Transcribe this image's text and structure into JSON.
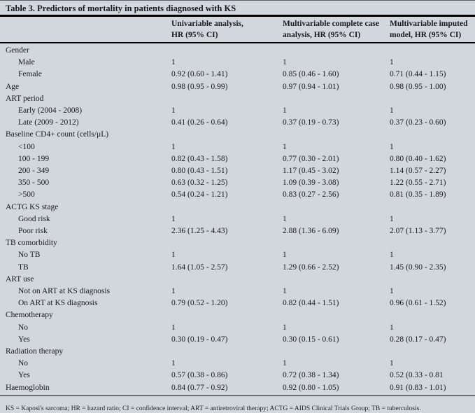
{
  "title": "Table 3. Predictors of mortality in patients diagnosed with KS",
  "columns": [
    {
      "line1": "Univariable analysis,",
      "line2": "HR (95% CI)"
    },
    {
      "line1": "Multivariable complete case",
      "line2": "analysis, HR (95% CI)"
    },
    {
      "line1": "Multivariable imputed",
      "line2": "model, HR (95% CI)"
    }
  ],
  "rows": [
    {
      "label": "Gender",
      "indent": 0,
      "values": [
        "",
        "",
        ""
      ]
    },
    {
      "label": "Male",
      "indent": 1,
      "values": [
        "1",
        "1",
        "1"
      ]
    },
    {
      "label": "Female",
      "indent": 1,
      "values": [
        "0.92 (0.60 - 1.41)",
        "0.85 (0.46 - 1.60)",
        "0.71 (0.44 - 1.15)"
      ]
    },
    {
      "label": "Age",
      "indent": 0,
      "values": [
        "0.98 (0.95 - 0.99)",
        "0.97 (0.94 - 1.01)",
        "0.98 (0.95 - 1.00)"
      ]
    },
    {
      "label": "ART period",
      "indent": 0,
      "values": [
        "",
        "",
        ""
      ]
    },
    {
      "label": "Early (2004 - 2008)",
      "indent": 1,
      "values": [
        "1",
        "1",
        "1"
      ]
    },
    {
      "label": "Late (2009 - 2012)",
      "indent": 1,
      "values": [
        "0.41 (0.26 - 0.64)",
        "0.37 (0.19 - 0.73)",
        "0.37 (0.23 - 0.60)"
      ]
    },
    {
      "label": "Baseline CD4+ count (cells/μL)",
      "indent": 0,
      "values": [
        "",
        "",
        ""
      ]
    },
    {
      "label": "<100",
      "indent": 1,
      "values": [
        "1",
        "1",
        "1"
      ]
    },
    {
      "label": "100 - 199",
      "indent": 1,
      "values": [
        "0.82 (0.43 - 1.58)",
        "0.77 (0.30 - 2.01)",
        "0.80 (0.40 - 1.62)"
      ]
    },
    {
      "label": "200 - 349",
      "indent": 1,
      "values": [
        "0.80 (0.43 - 1.51)",
        "1.17 (0.45 - 3.02)",
        "1.14 (0.57 - 2.27)"
      ]
    },
    {
      "label": "350 - 500",
      "indent": 1,
      "values": [
        "0.63 (0.32 - 1.25)",
        "1.09 (0.39 - 3.08)",
        "1.22 (0.55 - 2.71)"
      ]
    },
    {
      "label": ">500",
      "indent": 1,
      "values": [
        "0.54 (0.24 - 1.21)",
        "0.83 (0.27 - 2.56)",
        "0.81 (0.35 - 1.89)"
      ]
    },
    {
      "label": "ACTG KS stage",
      "indent": 0,
      "values": [
        "",
        "",
        ""
      ]
    },
    {
      "label": "Good risk",
      "indent": 1,
      "values": [
        "1",
        "1",
        "1"
      ]
    },
    {
      "label": "Poor risk",
      "indent": 1,
      "values": [
        "2.36 (1.25 - 4.43)",
        "2.88 (1.36 - 6.09)",
        "2.07 (1.13 - 3.77)"
      ]
    },
    {
      "label": "TB comorbidity",
      "indent": 0,
      "values": [
        "",
        "",
        ""
      ]
    },
    {
      "label": "No TB",
      "indent": 1,
      "values": [
        "1",
        "1",
        "1"
      ]
    },
    {
      "label": "TB",
      "indent": 1,
      "values": [
        "1.64 (1.05 - 2.57)",
        "1.29 (0.66 - 2.52)",
        "1.45 (0.90 - 2.35)"
      ]
    },
    {
      "label": "ART use",
      "indent": 0,
      "values": [
        "",
        "",
        ""
      ]
    },
    {
      "label": "Not on ART at KS diagnosis",
      "indent": 1,
      "values": [
        "1",
        "1",
        "1"
      ]
    },
    {
      "label": "On ART at KS diagnosis",
      "indent": 1,
      "values": [
        "0.79 (0.52 - 1.20)",
        "0.82 (0.44 - 1.51)",
        "0.96 (0.61 - 1.52)"
      ]
    },
    {
      "label": "Chemotherapy",
      "indent": 0,
      "values": [
        "",
        "",
        ""
      ]
    },
    {
      "label": "No",
      "indent": 1,
      "values": [
        "1",
        "1",
        "1"
      ]
    },
    {
      "label": "Yes",
      "indent": 1,
      "values": [
        "0.30 (0.19 - 0.47)",
        "0.30 (0.15 - 0.61)",
        "0.28 (0.17 - 0.47)"
      ]
    },
    {
      "label": "Radiation therapy",
      "indent": 0,
      "values": [
        "",
        "",
        ""
      ]
    },
    {
      "label": "No",
      "indent": 1,
      "values": [
        "1",
        "1",
        "1"
      ]
    },
    {
      "label": "Yes",
      "indent": 1,
      "values": [
        "0.57 (0.38 - 0.86)",
        "0.72 (0.38 - 1.34)",
        "0.52 (0.33 - 0.81"
      ]
    },
    {
      "label": "Haemoglobin",
      "indent": 0,
      "values": [
        "0.84 (0.77 - 0.92)",
        "0.92 (0.80 - 1.05)",
        "0.91 (0.83 - 1.01)"
      ]
    }
  ],
  "footnote": "KS = Kaposi's sarcoma; HR = hazard ratio; CI = confidence interval; ART = antiretroviral therapy; ACTG = AIDS Clinical Trials Group; TB = tuberculosis.",
  "colors": {
    "background": "#d2d6dd",
    "text": "#191a1c",
    "rule": "#000000"
  }
}
